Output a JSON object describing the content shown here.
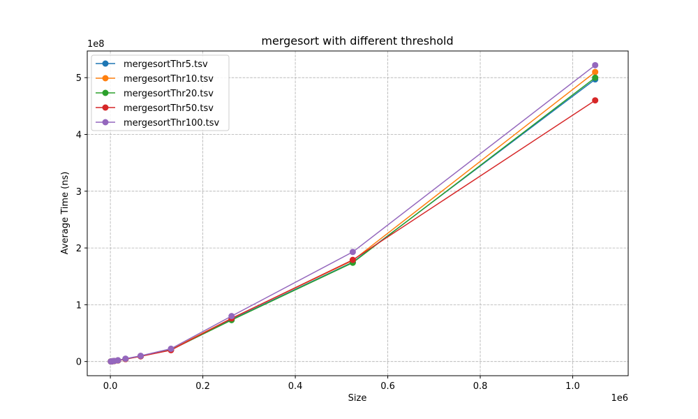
{
  "chart_data": {
    "type": "line",
    "title": "mergesort with different threshold",
    "xlabel": "Size",
    "ylabel": "Average Time (ns)",
    "x_offset_label": "1e6",
    "y_offset_label": "1e8",
    "xlim": [
      -50000,
      1120000
    ],
    "ylim": [
      -25000000,
      547000000
    ],
    "x_ticks": [
      0,
      200000,
      400000,
      600000,
      800000,
      1000000
    ],
    "x_tick_labels": [
      "0.0",
      "0.2",
      "0.4",
      "0.6",
      "0.8",
      "1.0"
    ],
    "y_ticks": [
      0,
      100000000,
      200000000,
      300000000,
      400000000,
      500000000
    ],
    "y_tick_labels": [
      "0",
      "1",
      "2",
      "3",
      "4",
      "5"
    ],
    "grid": true,
    "legend_position": "top-left",
    "x": [
      1024,
      2048,
      4096,
      8192,
      16384,
      32768,
      65536,
      131072,
      262144,
      524288,
      1048576
    ],
    "series": [
      {
        "name": "mergesortThr5.tsv",
        "color": "#1f77b4",
        "values": [
          100000,
          200000,
          400000,
          900000,
          2000000,
          4500000,
          9500000,
          21000000,
          74000000,
          175000000,
          497000000
        ]
      },
      {
        "name": "mergesortThr10.tsv",
        "color": "#ff7f0e",
        "values": [
          100000,
          200000,
          400000,
          900000,
          2000000,
          4600000,
          9600000,
          21500000,
          76000000,
          178000000,
          510000000
        ]
      },
      {
        "name": "mergesortThr20.tsv",
        "color": "#2ca02c",
        "values": [
          100000,
          200000,
          400000,
          900000,
          1900000,
          4400000,
          9300000,
          20500000,
          73000000,
          174000000,
          500000000
        ]
      },
      {
        "name": "mergesortThr50.tsv",
        "color": "#d62728",
        "values": [
          100000,
          200000,
          400000,
          900000,
          1900000,
          4300000,
          9200000,
          20000000,
          76000000,
          179000000,
          460000000
        ]
      },
      {
        "name": "mergesortThr100.tsv",
        "color": "#9467bd",
        "values": [
          100000,
          250000,
          500000,
          1000000,
          2200000,
          5000000,
          10000000,
          22500000,
          80000000,
          193000000,
          522000000
        ]
      }
    ]
  }
}
